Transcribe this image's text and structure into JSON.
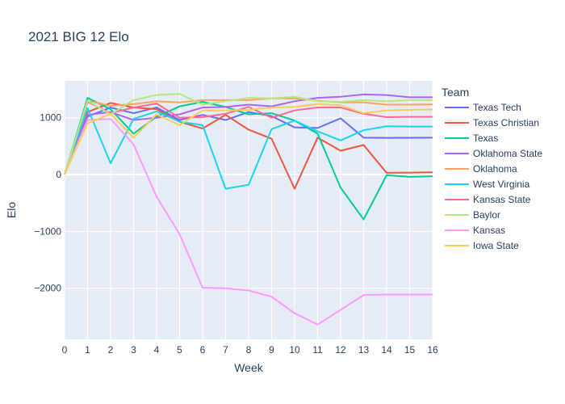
{
  "chart_data": {
    "type": "line",
    "title": "2021 BIG 12 Elo",
    "xlabel": "Week",
    "ylabel": "Elo",
    "xlim": [
      0,
      16
    ],
    "ylim": [
      -2900,
      1650
    ],
    "x_ticks": [
      0,
      1,
      2,
      3,
      4,
      5,
      6,
      7,
      8,
      9,
      10,
      11,
      12,
      13,
      14,
      15,
      16
    ],
    "y_ticks": [
      -2000,
      -1000,
      0,
      1000
    ],
    "y_tick_labels": [
      "−2000",
      "−1000",
      "0",
      "1000"
    ],
    "grid": true,
    "legend_title": "Team",
    "legend_position": "right",
    "x": [
      0,
      1,
      2,
      3,
      4,
      5,
      6,
      7,
      8,
      9,
      10,
      11,
      12,
      13,
      14,
      15,
      16
    ],
    "series": [
      {
        "name": "Texas Tech",
        "color": "#636efa",
        "values": [
          0,
          1020,
          1180,
          1080,
          1180,
          960,
          1050,
          960,
          1100,
          1030,
          830,
          820,
          990,
          650,
          645,
          648,
          650
        ]
      },
      {
        "name": "Texas Christian",
        "color": "#EF553B",
        "values": [
          0,
          1100,
          1260,
          1180,
          1150,
          930,
          810,
          1050,
          790,
          630,
          -250,
          650,
          420,
          520,
          30,
          35,
          40
        ]
      },
      {
        "name": "Texas",
        "color": "#00cc96",
        "values": [
          0,
          1350,
          1150,
          720,
          1020,
          1200,
          1280,
          1190,
          1060,
          1080,
          950,
          720,
          -230,
          -790,
          -10,
          -40,
          -30
        ]
      },
      {
        "name": "Oklahoma State",
        "color": "#ab63fa",
        "values": [
          0,
          1050,
          1100,
          960,
          1000,
          1060,
          1180,
          1190,
          1230,
          1200,
          1290,
          1350,
          1370,
          1410,
          1400,
          1360,
          1360
        ]
      },
      {
        "name": "Oklahoma",
        "color": "#FFA15A",
        "values": [
          0,
          1300,
          1210,
          1240,
          1290,
          1270,
          1310,
          1310,
          1310,
          1340,
          1340,
          1300,
          1270,
          1270,
          1230,
          1230,
          1235
        ]
      },
      {
        "name": "West Virginia",
        "color": "#19d3f3",
        "values": [
          0,
          1170,
          200,
          980,
          1110,
          930,
          870,
          -250,
          -180,
          800,
          950,
          760,
          600,
          780,
          850,
          845,
          845
        ]
      },
      {
        "name": "Kansas State",
        "color": "#FF6692",
        "values": [
          0,
          1280,
          1080,
          1180,
          1250,
          1000,
          1010,
          1070,
          1190,
          1000,
          1130,
          1180,
          1180,
          1070,
          1010,
          1015,
          1015
        ]
      },
      {
        "name": "Baylor",
        "color": "#B6E880",
        "values": [
          0,
          1300,
          1060,
          1310,
          1400,
          1420,
          1230,
          1290,
          1350,
          1340,
          1370,
          1290,
          1280,
          1310,
          1290,
          1310,
          1310
        ]
      },
      {
        "name": "Kansas",
        "color": "#FF97FF",
        "values": [
          0,
          960,
          980,
          530,
          -390,
          -1050,
          -1990,
          -2000,
          -2040,
          -2150,
          -2440,
          -2640,
          -2380,
          -2120,
          -2110,
          -2110,
          -2110
        ]
      },
      {
        "name": "Iowa State",
        "color": "#FECB52",
        "values": [
          0,
          900,
          1070,
          650,
          1060,
          870,
          1130,
          1130,
          1140,
          1180,
          1190,
          1240,
          1220,
          1080,
          1130,
          1140,
          1145
        ]
      }
    ]
  }
}
